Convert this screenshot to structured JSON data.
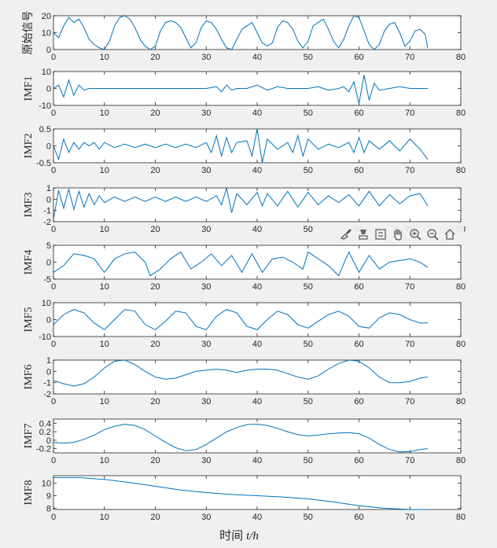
{
  "figure": {
    "xlabel_prefix": "时间",
    "xlabel_var": "t/h"
  },
  "toolbar": {
    "icons": [
      "brush-icon",
      "data-tip-icon",
      "legend-icon",
      "pan-hand-icon",
      "zoom-in-icon",
      "zoom-out-icon",
      "home-icon"
    ]
  },
  "chart_data": [
    {
      "type": "line",
      "ylabel": "原始信号",
      "color": "#0072bd",
      "xlim": [
        0,
        80
      ],
      "xticks": [
        0,
        10,
        20,
        30,
        40,
        50,
        60,
        70,
        80
      ],
      "ylim": [
        0,
        20
      ],
      "yticks": [
        0,
        10,
        20
      ],
      "x": [
        0,
        1,
        2,
        3,
        4,
        5,
        6,
        7,
        8,
        9,
        10,
        11,
        12,
        13,
        14,
        15,
        16,
        17,
        18,
        19,
        20,
        21,
        22,
        23,
        24,
        25,
        26,
        27,
        28,
        29,
        30,
        31,
        32,
        33,
        34,
        35,
        36,
        37,
        38,
        39,
        40,
        41,
        42,
        43,
        44,
        45,
        46,
        47,
        48,
        49,
        50,
        51,
        52,
        53,
        54,
        55,
        56,
        57,
        58,
        59,
        60,
        61,
        62,
        63,
        64,
        65,
        66,
        67,
        68,
        69,
        70,
        71,
        72,
        73,
        73.5
      ],
      "y": [
        10,
        7,
        14,
        19,
        16,
        18,
        13,
        6,
        3,
        1,
        0,
        5,
        14,
        19,
        20,
        18,
        13,
        6,
        2,
        0,
        2,
        11,
        16,
        17,
        16,
        13,
        7,
        1,
        4,
        13,
        17,
        16,
        12,
        6,
        1,
        0,
        6,
        12,
        14,
        16,
        10,
        4,
        2,
        4,
        13,
        17,
        16,
        12,
        5,
        1,
        5,
        14,
        16,
        18,
        12,
        5,
        1,
        6,
        14,
        20,
        19,
        11,
        3,
        0,
        3,
        11,
        15,
        16,
        10,
        2,
        5,
        11,
        12,
        9,
        1
      ]
    },
    {
      "type": "line",
      "ylabel": "IMF1",
      "color": "#0072bd",
      "xlim": [
        0,
        80
      ],
      "xticks": [
        0,
        10,
        20,
        30,
        40,
        50,
        60,
        70,
        80
      ],
      "ylim": [
        -10,
        10
      ],
      "yticks": [
        -10,
        0,
        10
      ],
      "x": [
        0,
        1,
        2,
        3,
        4,
        5,
        6,
        7,
        8,
        9,
        10,
        12,
        14,
        16,
        18,
        20,
        22,
        24,
        26,
        28,
        30,
        32,
        33,
        34,
        35,
        36,
        38,
        40,
        42,
        44,
        46,
        48,
        50,
        52,
        54,
        56,
        57,
        58,
        59,
        60,
        61,
        62,
        63,
        64,
        66,
        68,
        70,
        72,
        73.5
      ],
      "y": [
        0,
        2,
        -5,
        5,
        -4,
        2,
        -1,
        0,
        0,
        0,
        0,
        0,
        0,
        0,
        0,
        0,
        0,
        0,
        0,
        0,
        0,
        1,
        -2,
        2,
        -1,
        0,
        0,
        2,
        -1,
        1,
        0,
        0,
        0,
        1,
        -1,
        0,
        1,
        -2,
        4,
        -9,
        8,
        -7,
        3,
        -1,
        0,
        1,
        0,
        0,
        0
      ]
    },
    {
      "type": "line",
      "ylabel": "IMF2",
      "color": "#0072bd",
      "xlim": [
        0,
        80
      ],
      "xticks": [
        0,
        10,
        20,
        30,
        40,
        50,
        60,
        70,
        80
      ],
      "ylim": [
        -0.5,
        0.5
      ],
      "yticks": [
        -0.5,
        0,
        0.5
      ],
      "x": [
        0,
        1,
        2,
        3,
        4,
        5,
        6,
        7,
        8,
        9,
        10,
        12,
        14,
        16,
        18,
        20,
        22,
        24,
        26,
        28,
        30,
        31,
        32,
        33,
        34,
        35,
        36,
        38,
        39,
        40,
        41,
        42,
        44,
        46,
        47,
        48,
        49,
        50,
        52,
        54,
        56,
        58,
        59,
        60,
        61,
        62,
        64,
        66,
        68,
        70,
        72,
        73.5
      ],
      "y": [
        0,
        -0.4,
        0.2,
        -0.2,
        0.1,
        -0.1,
        0.1,
        0,
        0.1,
        -0.1,
        0.1,
        -0.05,
        0.05,
        -0.05,
        0.05,
        -0.05,
        0.05,
        -0.05,
        0.05,
        -0.05,
        0.1,
        -0.2,
        0.3,
        -0.3,
        0.25,
        -0.2,
        0.1,
        0.15,
        -0.3,
        0.5,
        -0.5,
        0.2,
        -0.1,
        0.1,
        -0.2,
        0.3,
        -0.3,
        0.2,
        -0.1,
        0.05,
        -0.05,
        0.1,
        -0.2,
        0.25,
        -0.2,
        0.15,
        -0.1,
        0.15,
        -0.15,
        0.2,
        -0.1,
        -0.4
      ]
    },
    {
      "type": "line",
      "ylabel": "IMF3",
      "color": "#0072bd",
      "xlim": [
        0,
        80
      ],
      "xticks": [
        0,
        10,
        20,
        30,
        40,
        50,
        60,
        70,
        80
      ],
      "ylim": [
        -2,
        1
      ],
      "yticks": [
        -2,
        -1,
        0,
        1
      ],
      "x": [
        0,
        1,
        2,
        3,
        4,
        5,
        6,
        7,
        8,
        9,
        10,
        12,
        14,
        16,
        18,
        20,
        22,
        24,
        26,
        28,
        30,
        32,
        33,
        34,
        35,
        36,
        38,
        40,
        41,
        42,
        44,
        46,
        48,
        50,
        52,
        54,
        56,
        58,
        60,
        62,
        64,
        66,
        68,
        70,
        72,
        73.5
      ],
      "y": [
        -1.8,
        0.8,
        -0.8,
        0.9,
        -0.9,
        0.7,
        -0.7,
        0.5,
        -0.5,
        0.3,
        -0.3,
        0.2,
        -0.2,
        0.2,
        -0.2,
        0.2,
        -0.2,
        0.2,
        -0.2,
        0.2,
        -0.2,
        0.3,
        -0.5,
        1,
        -1.2,
        0.5,
        -0.5,
        0.6,
        -0.6,
        0.5,
        -0.6,
        0.7,
        -0.7,
        0.6,
        -0.5,
        0.3,
        -0.3,
        0.4,
        -0.6,
        0.7,
        -0.6,
        0.4,
        -0.4,
        0.3,
        0.5,
        -0.6
      ]
    },
    {
      "type": "line",
      "ylabel": "IMF4",
      "color": "#0072bd",
      "xlim": [
        0,
        80
      ],
      "xticks": [
        0,
        10,
        20,
        30,
        40,
        50,
        60,
        70,
        80
      ],
      "ylim": [
        -5,
        5
      ],
      "yticks": [
        -5,
        0,
        5
      ],
      "x": [
        0,
        2,
        4,
        6,
        8,
        10,
        12,
        14,
        16,
        18,
        19,
        21,
        23,
        25,
        27,
        29,
        31,
        33,
        35,
        37,
        39,
        41,
        43,
        45,
        47,
        49,
        50,
        52,
        54,
        56,
        58,
        60,
        62,
        64,
        66,
        68,
        70,
        72,
        73.5
      ],
      "y": [
        -3,
        -1,
        2.5,
        2,
        1,
        -3,
        1,
        2.5,
        3,
        0,
        -4,
        -2,
        1,
        3,
        -2,
        0,
        2.5,
        -1,
        2,
        -3,
        2.5,
        -3,
        1,
        1.5,
        0,
        -2,
        3,
        1,
        -1,
        -4,
        3,
        -3,
        2,
        -2,
        0,
        0.5,
        1,
        0,
        -1.5
      ]
    },
    {
      "type": "line",
      "ylabel": "IMF5",
      "color": "#0072bd",
      "xlim": [
        0,
        80
      ],
      "xticks": [
        0,
        10,
        20,
        30,
        40,
        50,
        60,
        70,
        80
      ],
      "ylim": [
        -10,
        10
      ],
      "yticks": [
        -10,
        0,
        10
      ],
      "x": [
        0,
        2,
        4,
        6,
        8,
        10,
        12,
        14,
        16,
        18,
        20,
        22,
        24,
        26,
        28,
        30,
        32,
        34,
        36,
        38,
        40,
        42,
        44,
        46,
        48,
        50,
        52,
        54,
        56,
        58,
        60,
        62,
        64,
        66,
        68,
        70,
        72,
        73.5
      ],
      "y": [
        -3,
        3,
        6,
        4,
        -2,
        -6,
        0,
        6,
        5,
        -3,
        -6,
        -1,
        5,
        4,
        -4,
        -6,
        2,
        6,
        4,
        -4,
        -6,
        0,
        5,
        3,
        -3,
        -5,
        -1,
        3,
        5,
        2,
        -4,
        -5,
        1,
        4,
        3,
        0,
        -2,
        -2
      ]
    },
    {
      "type": "line",
      "ylabel": "IMF6",
      "color": "#0072bd",
      "xlim": [
        0,
        80
      ],
      "xticks": [
        0,
        10,
        20,
        30,
        40,
        50,
        60,
        70,
        80
      ],
      "ylim": [
        -2,
        1
      ],
      "yticks": [
        -2,
        -1,
        0,
        1
      ],
      "x": [
        0,
        2,
        4,
        6,
        8,
        10,
        12,
        14,
        16,
        18,
        20,
        22,
        24,
        26,
        28,
        30,
        32,
        34,
        36,
        38,
        40,
        42,
        44,
        46,
        48,
        50,
        52,
        54,
        56,
        58,
        60,
        62,
        64,
        66,
        68,
        70,
        72,
        73.5
      ],
      "y": [
        -0.8,
        -1.1,
        -1.3,
        -1.1,
        -0.5,
        0.3,
        0.9,
        1,
        0.6,
        0,
        -0.5,
        -0.7,
        -0.6,
        -0.3,
        0,
        0.1,
        0.2,
        0.1,
        -0.1,
        0.1,
        0.2,
        0.2,
        0.1,
        -0.2,
        -0.5,
        -0.7,
        -0.4,
        0.2,
        0.7,
        1,
        0.9,
        0.3,
        -0.5,
        -1,
        -1,
        -0.9,
        -0.6,
        -0.5
      ]
    },
    {
      "type": "line",
      "ylabel": "IMF7",
      "color": "#0072bd",
      "xlim": [
        0,
        80
      ],
      "xticks": [
        0,
        10,
        20,
        30,
        40,
        50,
        60,
        70,
        80
      ],
      "ylim": [
        -0.3,
        0.5
      ],
      "yticks": [
        -0.2,
        0,
        0.2,
        0.4
      ],
      "x": [
        0,
        2,
        4,
        6,
        8,
        10,
        12,
        14,
        16,
        18,
        20,
        22,
        24,
        26,
        28,
        30,
        32,
        34,
        36,
        38,
        40,
        42,
        44,
        46,
        48,
        50,
        52,
        54,
        56,
        58,
        60,
        62,
        64,
        66,
        68,
        70,
        72,
        73.5
      ],
      "y": [
        -0.05,
        -0.07,
        -0.05,
        0.02,
        0.12,
        0.25,
        0.33,
        0.38,
        0.35,
        0.25,
        0.1,
        -0.05,
        -0.18,
        -0.25,
        -0.22,
        -0.1,
        0.05,
        0.2,
        0.3,
        0.37,
        0.38,
        0.35,
        0.28,
        0.2,
        0.13,
        0.1,
        0.12,
        0.15,
        0.17,
        0.18,
        0.15,
        0.05,
        -0.1,
        -0.22,
        -0.28,
        -0.27,
        -0.22,
        -0.2
      ]
    },
    {
      "type": "line",
      "ylabel": "IMF8",
      "color": "#0072bd",
      "xlim": [
        0,
        80
      ],
      "xticks": [
        0,
        10,
        20,
        30,
        40,
        50,
        60,
        70,
        80
      ],
      "ylim": [
        7.9,
        10.6
      ],
      "yticks": [
        8,
        9,
        10
      ],
      "x": [
        0,
        5,
        10,
        15,
        20,
        25,
        30,
        35,
        40,
        45,
        50,
        55,
        60,
        65,
        70,
        73.5
      ],
      "y": [
        10.45,
        10.45,
        10.3,
        10.05,
        9.75,
        9.45,
        9.25,
        9.1,
        9,
        8.9,
        8.75,
        8.5,
        8.2,
        8,
        7.9,
        7.9
      ]
    }
  ]
}
